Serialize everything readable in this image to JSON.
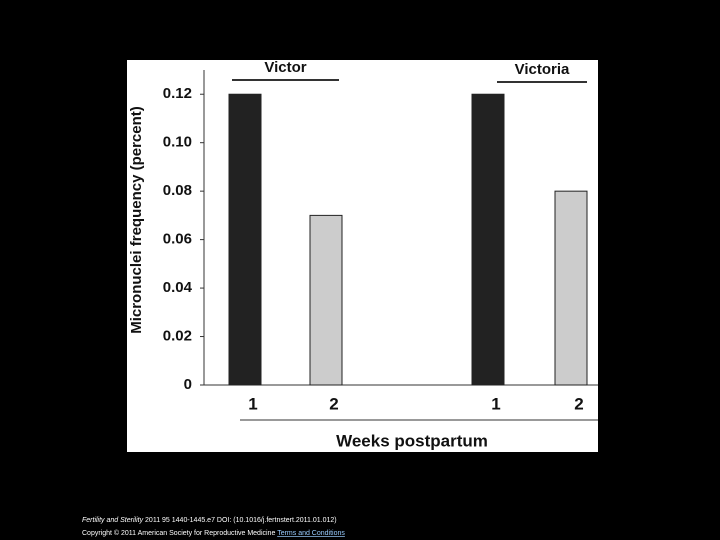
{
  "chart_data": {
    "type": "bar",
    "y_label": "Micronuclei frequency (percent)",
    "x_label": "Weeks postpartum",
    "groups": [
      {
        "name": "Victor",
        "categories": [
          "1",
          "2"
        ],
        "values": [
          0.12,
          0.07
        ]
      },
      {
        "name": "Victoria",
        "categories": [
          "1",
          "2"
        ],
        "values": [
          0.12,
          0.08
        ]
      }
    ],
    "colors": [
      "#222222",
      "#cccccc"
    ],
    "ylim": [
      0,
      0.13
    ],
    "yticks": [
      0,
      0.02,
      0.04,
      0.06,
      0.08,
      {
        "value": 0.1,
        "label": "0.10"
      },
      0.12
    ],
    "grid": false
  },
  "footer": {
    "journal": "Fertility and Sterility",
    "citation": "2011 95 1440-1445.e7 DOI: (10.1016/j.fertnstert.2011.01.012)",
    "copyright": "Copyright © 2011 American Society for Reproductive Medicine",
    "link": "Terms and Conditions"
  }
}
